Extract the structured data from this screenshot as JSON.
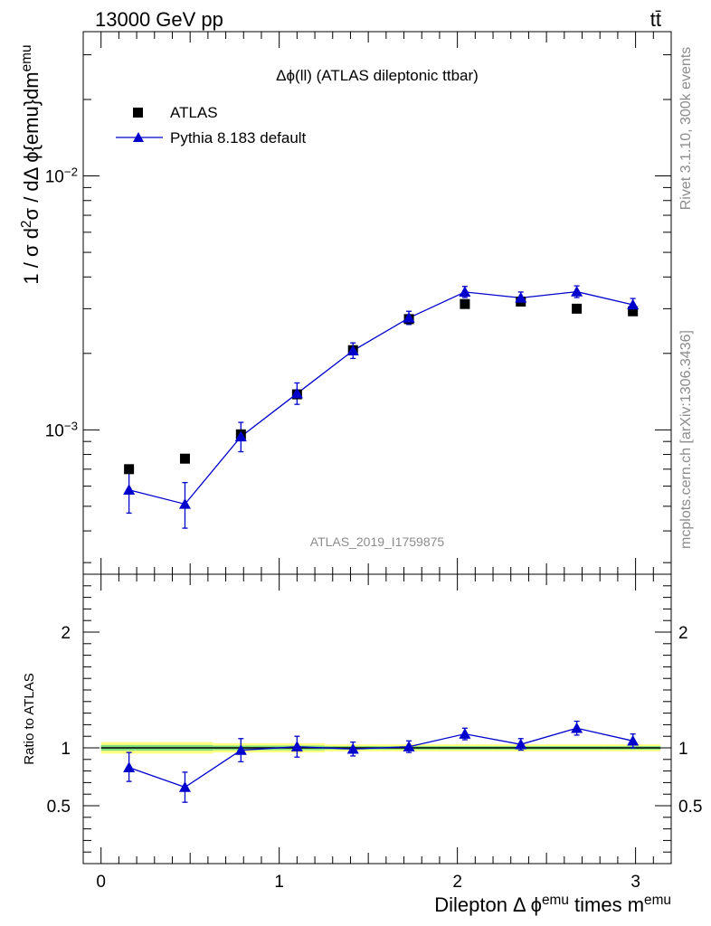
{
  "header": {
    "energy_label": "13000 GeV pp",
    "process_label": "tt̄"
  },
  "side_labels": {
    "rivet": "Rivet 3.1.10,  300k events",
    "source": "mcplots.cern.ch [arXiv:1306.3436]"
  },
  "chart_data": [
    {
      "type": "scatter",
      "panel": "main",
      "title": "Δϕ(ll) (ATLAS dileptonic ttbar)",
      "watermark": "ATLAS_2019_I1759875",
      "ylabel": "1 / σ  d²σ / dΔ ϕ{emu}dm^emu",
      "yscale": "log",
      "xlim": [
        -0.1,
        3.2
      ],
      "ylim": [
        0.00027,
        0.037
      ],
      "y_ticklabels": [
        {
          "value": 0.001,
          "label": "10⁻³"
        },
        {
          "value": 0.01,
          "label": "10⁻²"
        }
      ],
      "legend": {
        "position": "top-left",
        "entries": [
          {
            "label": "ATLAS",
            "marker": "square",
            "color": "#000000"
          },
          {
            "label": "Pythia 8.183 default",
            "marker": "triangle",
            "color": "#0000cc"
          }
        ]
      },
      "x": [
        0.157,
        0.471,
        0.785,
        1.1,
        1.414,
        1.728,
        2.042,
        2.356,
        2.67,
        2.985
      ],
      "series": [
        {
          "name": "ATLAS",
          "values": [
            0.0007,
            0.00077,
            0.00096,
            0.00138,
            0.00206,
            0.00273,
            0.00313,
            0.0032,
            0.003,
            0.00293
          ]
        },
        {
          "name": "Pythia 8.183 default",
          "values": [
            0.00058,
            0.00051,
            0.00094,
            0.00139,
            0.00205,
            0.00276,
            0.00349,
            0.00331,
            0.0035,
            0.00311
          ],
          "err_low": [
            0.00011,
            0.0001,
            0.00012,
            0.00013,
            0.00014,
            0.00016,
            0.00017,
            0.00017,
            0.00018,
            0.00017
          ],
          "err_high": [
            0.00012,
            0.00011,
            0.00013,
            0.00014,
            0.00015,
            0.00017,
            0.00018,
            0.00018,
            0.00019,
            0.00018
          ]
        }
      ]
    },
    {
      "type": "scatter",
      "panel": "ratio",
      "ylabel": "Ratio to ATLAS",
      "xlabel": "Dilepton Δ ϕ^emu times m^emu",
      "xlim": [
        -0.1,
        3.2
      ],
      "ylim": [
        0.0,
        2.5
      ],
      "x_ticks": [
        0,
        1,
        2,
        3
      ],
      "y_ticks": [
        0.5,
        1,
        2
      ],
      "x": [
        0.157,
        0.471,
        0.785,
        1.1,
        1.414,
        1.728,
        2.042,
        2.356,
        2.67,
        2.985
      ],
      "series": [
        {
          "name": "Pythia 8.183 default / ATLAS",
          "values": [
            0.83,
            0.66,
            0.98,
            1.01,
            0.99,
            1.01,
            1.12,
            1.03,
            1.17,
            1.06
          ],
          "err_low": [
            0.12,
            0.13,
            0.1,
            0.09,
            0.06,
            0.05,
            0.05,
            0.05,
            0.06,
            0.06
          ],
          "err_high": [
            0.13,
            0.13,
            0.1,
            0.09,
            0.06,
            0.05,
            0.05,
            0.05,
            0.06,
            0.06
          ]
        }
      ],
      "bands": [
        {
          "name": "ATLAS total uncertainty",
          "color": "#ffff80",
          "half_width": [
            0.05,
            0.05,
            0.04,
            0.04,
            0.03,
            0.03,
            0.03,
            0.03,
            0.03,
            0.03
          ]
        },
        {
          "name": "ATLAS statistical uncertainty",
          "color": "#80e080",
          "half_width": [
            0.025,
            0.025,
            0.02,
            0.02,
            0.015,
            0.015,
            0.015,
            0.015,
            0.015,
            0.015
          ]
        }
      ]
    }
  ]
}
